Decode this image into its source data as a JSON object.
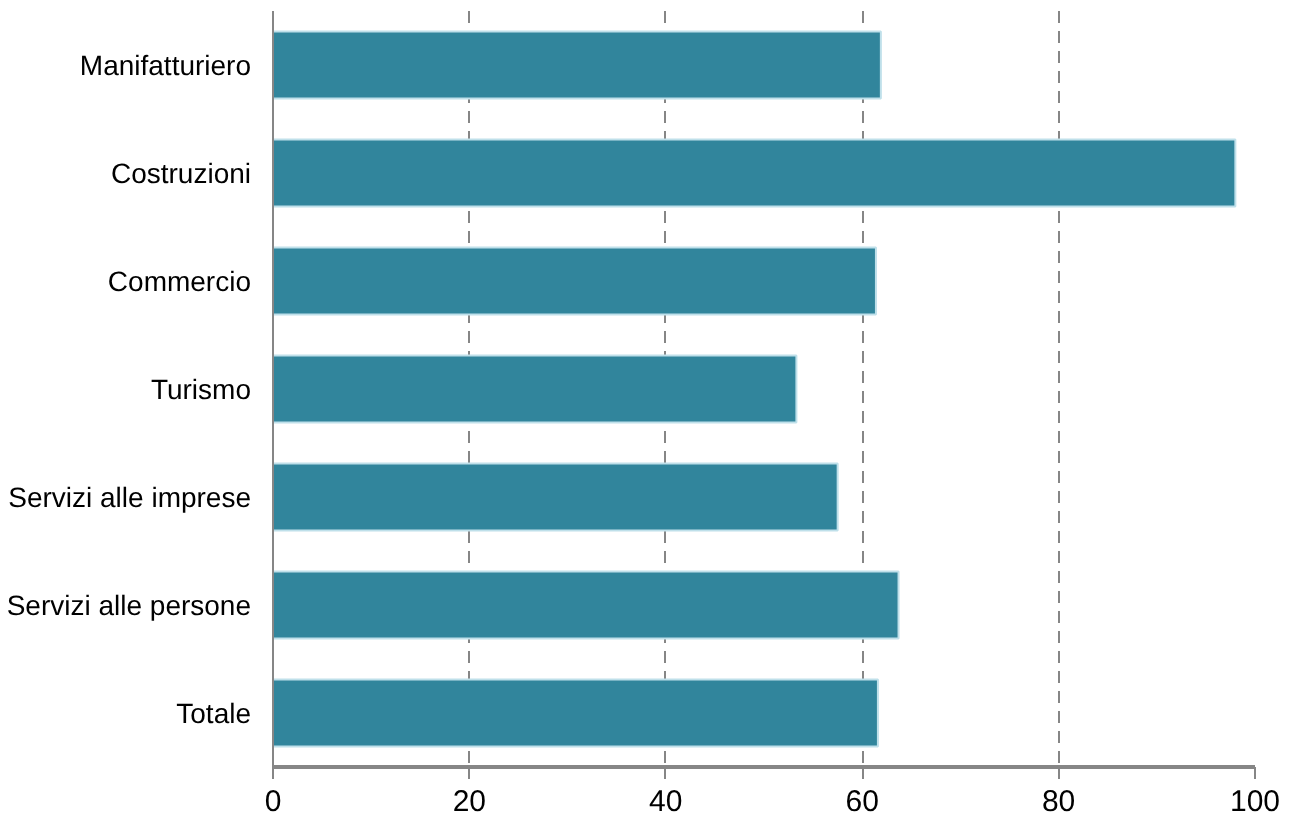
{
  "chart_data": {
    "type": "bar",
    "orientation": "horizontal",
    "categories": [
      "Manifatturiero",
      "Costruzioni",
      "Commercio",
      "Turismo",
      "Servizi alle imprese",
      "Servizi alle persone",
      "Totale"
    ],
    "values": [
      61.9,
      98.0,
      61.4,
      53.3,
      57.5,
      63.7,
      61.6
    ],
    "color": "#31859c",
    "xlim": [
      0,
      100
    ],
    "xticks": [
      0,
      20,
      40,
      60,
      80,
      100
    ],
    "grid": "x"
  }
}
